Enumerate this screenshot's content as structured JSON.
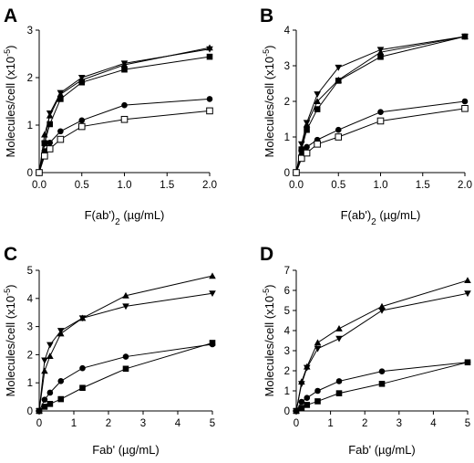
{
  "chart_data": [
    {
      "panel": "A",
      "type": "line",
      "xlabel_main": "F(ab')",
      "xlabel_sub": "2",
      "xlabel_unit": " (µg/mL)",
      "ylabel_main": "Molecules/cell (x10",
      "ylabel_sup": "-5",
      "ylabel_end": ")",
      "xlim": [
        0,
        2.0
      ],
      "ylim": [
        0,
        3
      ],
      "xticks": [
        "0.0",
        "0.5",
        "1.0",
        "1.5",
        "2.0"
      ],
      "xtick_values": [
        0,
        0.5,
        1.0,
        1.5,
        2.0
      ],
      "yticks": [
        "0",
        "1",
        "2",
        "3"
      ],
      "ytick_values": [
        0,
        1,
        2,
        3
      ],
      "x": [
        0,
        0.0625,
        0.125,
        0.25,
        0.5,
        1.0,
        2.0
      ],
      "series": [
        {
          "marker": "triangle-down",
          "values": [
            0,
            0.6,
            1.25,
            1.68,
            2.0,
            2.3,
            2.6
          ]
        },
        {
          "marker": "triangle-up",
          "values": [
            0,
            0.8,
            1.2,
            1.65,
            1.95,
            2.27,
            2.63
          ]
        },
        {
          "marker": "square-filled",
          "values": [
            0,
            0.62,
            1.02,
            1.55,
            1.9,
            2.17,
            2.44
          ]
        },
        {
          "marker": "circle-filled",
          "values": [
            0,
            0.45,
            0.63,
            0.87,
            1.1,
            1.42,
            1.55
          ]
        },
        {
          "marker": "square-open",
          "values": [
            0,
            0.35,
            0.5,
            0.7,
            0.97,
            1.12,
            1.3
          ]
        }
      ]
    },
    {
      "panel": "B",
      "type": "line",
      "xlabel_main": "F(ab')",
      "xlabel_sub": "2",
      "xlabel_unit": " (µg/mL)",
      "ylabel_main": "Molecules/cell (x10",
      "ylabel_sup": "-5",
      "ylabel_end": ")",
      "xlim": [
        0,
        2.0
      ],
      "ylim": [
        0,
        4
      ],
      "xticks": [
        "0.0",
        "0.5",
        "1.0",
        "1.5",
        "2.0"
      ],
      "xtick_values": [
        0,
        0.5,
        1.0,
        1.5,
        2.0
      ],
      "yticks": [
        "0",
        "1",
        "2",
        "3",
        "4"
      ],
      "ytick_values": [
        0,
        1,
        2,
        3,
        4
      ],
      "x": [
        0,
        0.0625,
        0.125,
        0.25,
        0.5,
        1.0,
        2.0
      ],
      "series": [
        {
          "marker": "triangle-down",
          "values": [
            0,
            0.8,
            1.4,
            2.2,
            2.95,
            3.45,
            3.82
          ]
        },
        {
          "marker": "triangle-up",
          "values": [
            0,
            0.7,
            1.35,
            2.0,
            2.6,
            3.38,
            3.82
          ]
        },
        {
          "marker": "square-filled",
          "values": [
            0,
            0.65,
            1.2,
            1.78,
            2.58,
            3.25,
            3.82
          ]
        },
        {
          "marker": "circle-filled",
          "values": [
            0,
            0.5,
            0.72,
            0.92,
            1.2,
            1.7,
            2.0
          ]
        },
        {
          "marker": "square-open",
          "values": [
            0,
            0.4,
            0.55,
            0.8,
            1.0,
            1.45,
            1.8
          ]
        }
      ]
    },
    {
      "panel": "C",
      "type": "line",
      "xlabel_main": "Fab' (µg/mL)",
      "ylabel_main": "Molecules/cell (x10",
      "ylabel_sup": "-5",
      "ylabel_end": ")",
      "xlim": [
        0,
        5
      ],
      "ylim": [
        0,
        5
      ],
      "xticks": [
        "0",
        "1",
        "2",
        "3",
        "4",
        "5"
      ],
      "xtick_values": [
        0,
        1,
        2,
        3,
        4,
        5
      ],
      "yticks": [
        "0",
        "1",
        "2",
        "3",
        "4",
        "5"
      ],
      "ytick_values": [
        0,
        1,
        2,
        3,
        4,
        5
      ],
      "x": [
        0,
        0.156,
        0.3125,
        0.625,
        1.25,
        2.5,
        5
      ],
      "series": [
        {
          "marker": "triangle-up",
          "values": [
            0,
            1.42,
            1.95,
            2.75,
            3.3,
            4.1,
            4.8
          ]
        },
        {
          "marker": "triangle-down",
          "values": [
            0,
            1.8,
            2.35,
            2.85,
            3.3,
            3.72,
            4.18
          ]
        },
        {
          "marker": "circle-filled",
          "values": [
            0,
            0.4,
            0.65,
            1.06,
            1.52,
            1.93,
            2.37
          ]
        },
        {
          "marker": "square-filled",
          "values": [
            0,
            0.15,
            0.25,
            0.42,
            0.82,
            1.5,
            2.42
          ]
        }
      ]
    },
    {
      "panel": "D",
      "type": "line",
      "xlabel_main": "Fab' (µg/mL)",
      "ylabel_main": "Molecules/cell (x10",
      "ylabel_sup": "-5",
      "ylabel_end": ")",
      "xlim": [
        0,
        5
      ],
      "ylim": [
        0,
        7
      ],
      "xticks": [
        "0",
        "1",
        "2",
        "3",
        "4",
        "5"
      ],
      "xtick_values": [
        0,
        1,
        2,
        3,
        4,
        5
      ],
      "yticks": [
        "0",
        "1",
        "2",
        "3",
        "4",
        "5",
        "6",
        "7"
      ],
      "ytick_values": [
        0,
        1,
        2,
        3,
        4,
        5,
        6,
        7
      ],
      "x": [
        0,
        0.156,
        0.3125,
        0.625,
        1.25,
        2.5,
        5
      ],
      "series": [
        {
          "marker": "triangle-up",
          "values": [
            0,
            1.45,
            2.2,
            3.4,
            4.1,
            5.2,
            6.5
          ]
        },
        {
          "marker": "triangle-down",
          "values": [
            0,
            1.35,
            2.15,
            3.1,
            3.6,
            5.0,
            5.85
          ]
        },
        {
          "marker": "circle-filled",
          "values": [
            0,
            0.45,
            0.65,
            1.0,
            1.48,
            1.97,
            2.42
          ]
        },
        {
          "marker": "square-filled",
          "values": [
            0,
            0.15,
            0.3,
            0.48,
            0.88,
            1.35,
            2.42
          ]
        }
      ]
    }
  ]
}
